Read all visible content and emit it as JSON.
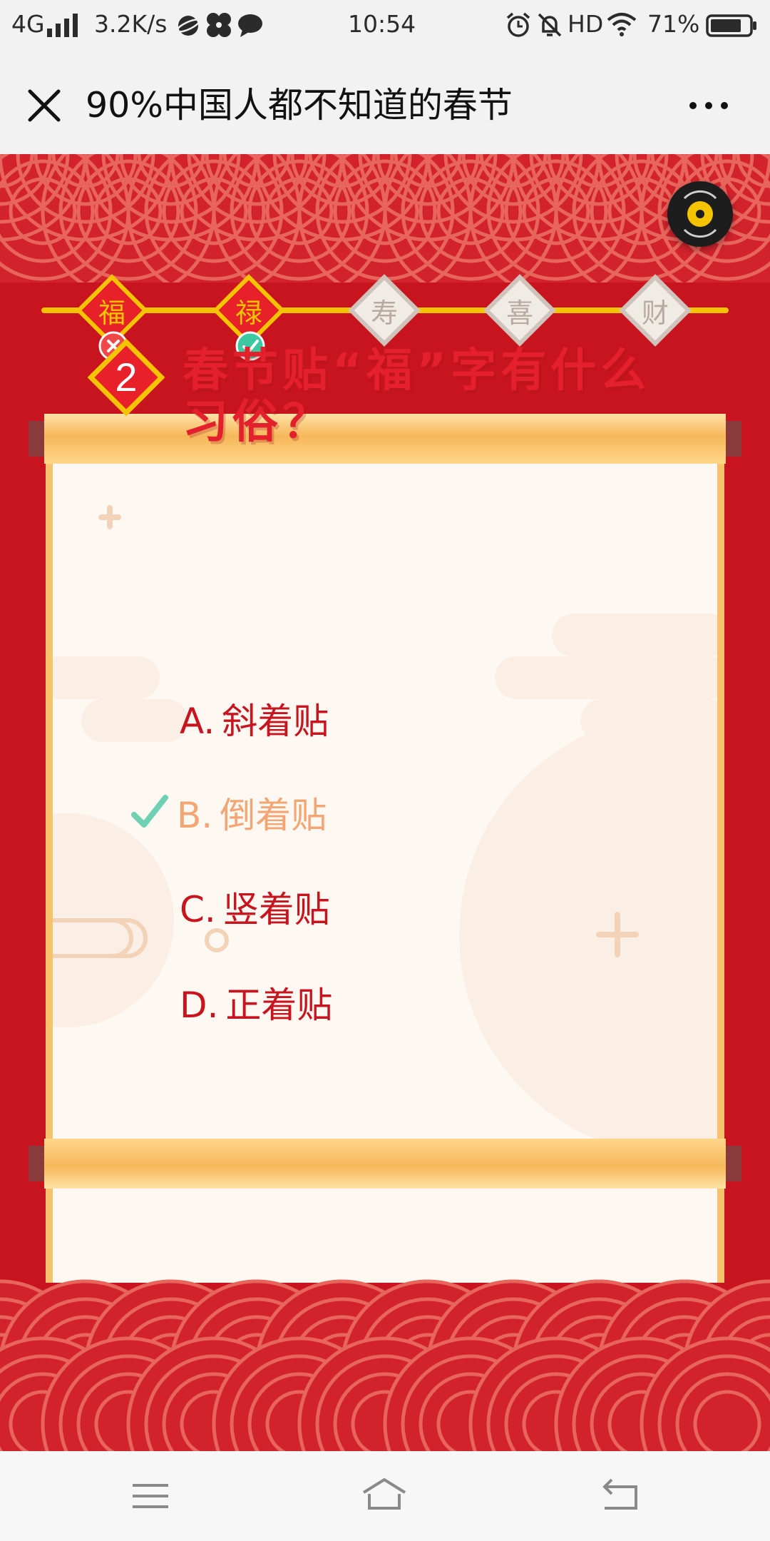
{
  "status_bar": {
    "network": "4G",
    "speed": "3.2K/s",
    "time": "10:54",
    "hd": "HD",
    "battery": "71%"
  },
  "title_bar": {
    "title": "90%中国人都不知道的春节"
  },
  "progress": {
    "steps": [
      {
        "char": "福",
        "state": "wrong"
      },
      {
        "char": "禄",
        "state": "correct"
      },
      {
        "char": "寿",
        "state": "locked"
      },
      {
        "char": "喜",
        "state": "locked"
      },
      {
        "char": "财",
        "state": "locked"
      }
    ]
  },
  "question": {
    "number": "2",
    "text": "春节贴“福”字有什么习俗？",
    "options": [
      {
        "letter": "A.",
        "text": "斜着贴"
      },
      {
        "letter": "B.",
        "text": "倒着贴",
        "selected": true
      },
      {
        "letter": "C.",
        "text": "竖着贴"
      },
      {
        "letter": "D.",
        "text": "正着贴"
      }
    ]
  },
  "colors": {
    "background_red": "#c8141e",
    "gold": "#f5c400",
    "correct_green": "#3cc8a0",
    "selected_option": "#f4a574"
  }
}
